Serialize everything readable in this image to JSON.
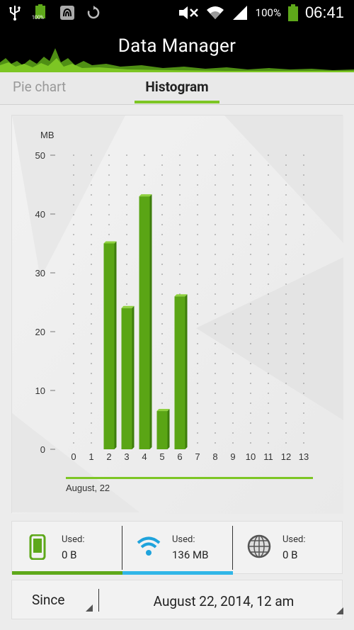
{
  "status_bar": {
    "battery_small_label": "100%",
    "battery_percent": "100%",
    "time": "06:41"
  },
  "app": {
    "title": "Data Manager"
  },
  "tabs": [
    {
      "label": "Pie chart",
      "selected": false
    },
    {
      "label": "Histogram",
      "selected": true
    }
  ],
  "chart_data": {
    "type": "bar",
    "ylabel": "MB",
    "ylim": [
      0,
      50
    ],
    "yticks": [
      "0",
      "10",
      "20",
      "30",
      "40",
      "50"
    ],
    "categories": [
      "0",
      "1",
      "2",
      "3",
      "4",
      "5",
      "6",
      "7",
      "8",
      "9",
      "10",
      "11",
      "12",
      "13"
    ],
    "values": [
      0,
      0,
      35,
      24,
      43,
      6.5,
      26,
      0,
      0,
      0,
      0,
      0,
      0,
      0
    ],
    "range_label": "August, 22",
    "bar_color": "#5aa515",
    "bar_top_color": "#8fd13f",
    "bar_side_color": "#3d7d0c",
    "range_line_color": "#7dc624"
  },
  "usage": [
    {
      "icon": "phone-icon",
      "label": "Used:",
      "value": "0 B",
      "color": "#5ea81a"
    },
    {
      "icon": "wifi-icon",
      "label": "Used:",
      "value": "136 MB",
      "color": "#31b6e7"
    },
    {
      "icon": "globe-icon",
      "label": "Used:",
      "value": "0 B",
      "color": "#cccccc"
    }
  ],
  "since": {
    "label": "Since",
    "date": "August 22, 2014, 12 am"
  }
}
